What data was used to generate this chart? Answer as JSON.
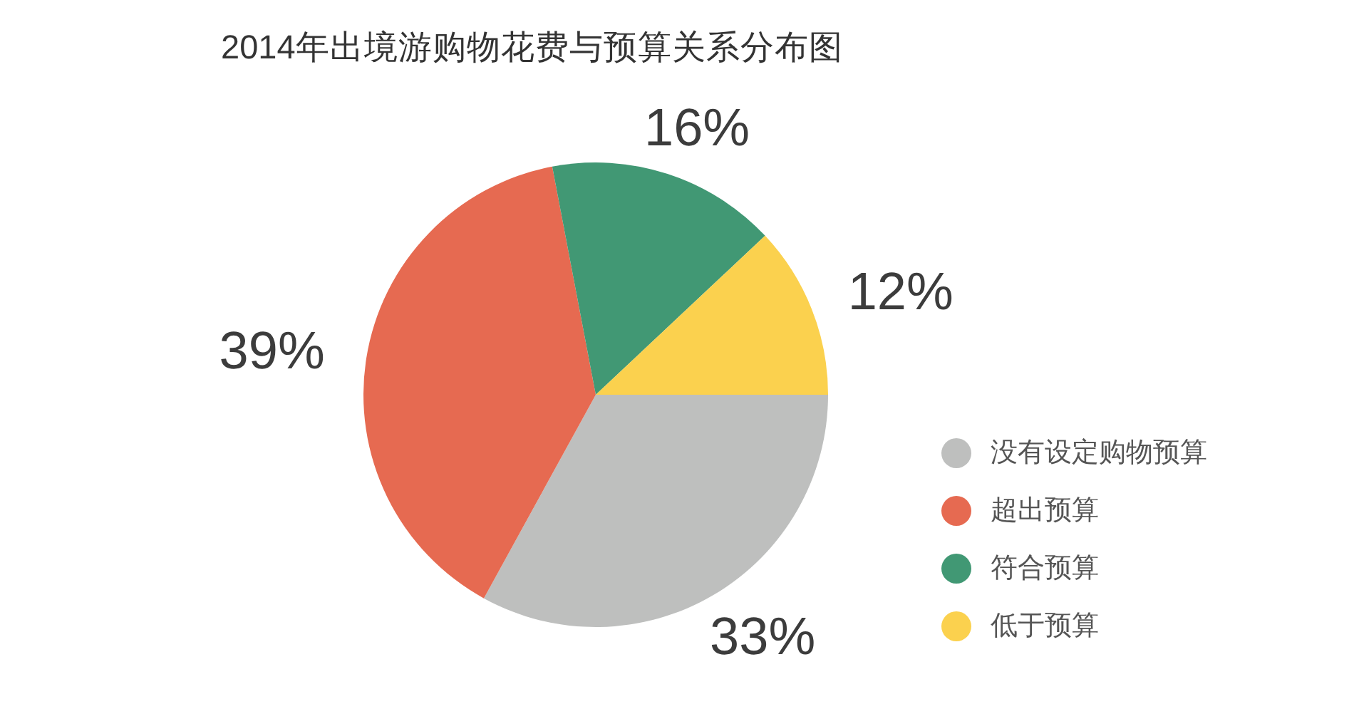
{
  "chart_data": {
    "type": "pie",
    "title": "2014年出境游购物花费与预算关系分布图",
    "categories": [
      "没有设定购物预算",
      "超出预算",
      "符合预算",
      "低于预算"
    ],
    "values": [
      33,
      39,
      16,
      12
    ],
    "colors": [
      "#bebfbe",
      "#e66a51",
      "#419874",
      "#fbd14e"
    ],
    "value_labels": [
      "33%",
      "39%",
      "16%",
      "12%"
    ],
    "legend": "right"
  }
}
